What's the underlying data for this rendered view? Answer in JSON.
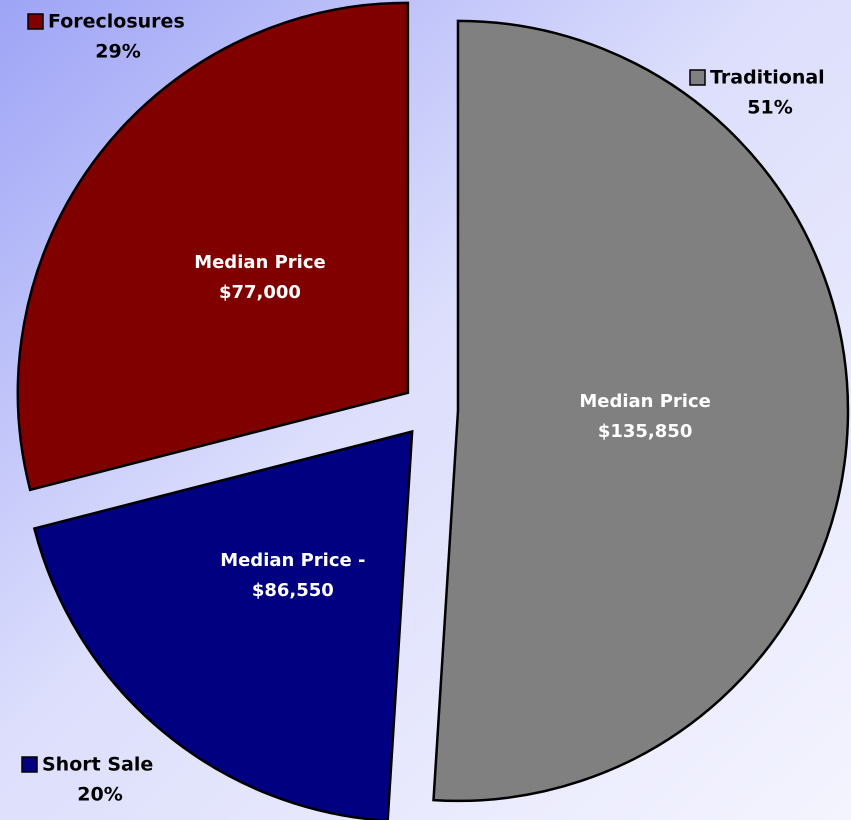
{
  "chart_data": {
    "type": "pie",
    "categories": [
      "Traditional",
      "Short Sale",
      "Foreclosures"
    ],
    "values": [
      51,
      20,
      29
    ],
    "value_labels": [
      "51%",
      "20%",
      "29%"
    ],
    "colors": [
      "#808080",
      "#000080",
      "#800000"
    ],
    "inner_labels": [
      [
        "Median Price",
        "$135,850"
      ],
      [
        "Median Price -",
        "$86,550"
      ],
      [
        "Median Price",
        "$77,000"
      ]
    ],
    "exploded": true
  }
}
